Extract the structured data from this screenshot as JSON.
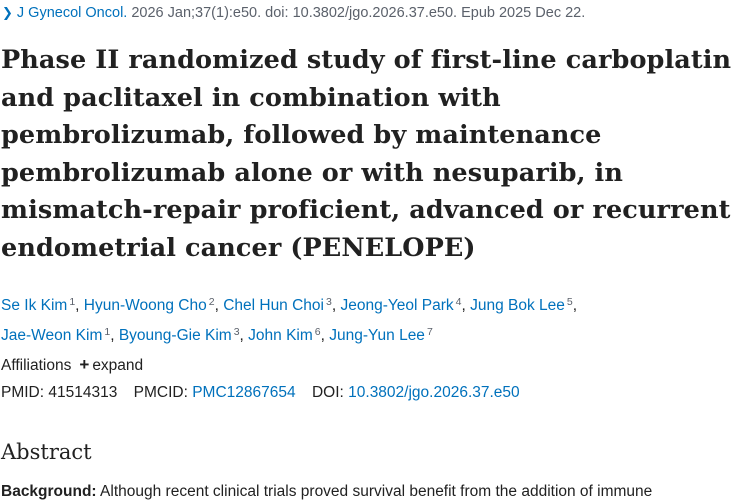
{
  "citation": {
    "journal": "J Gynecol Oncol.",
    "details": "2026 Jan;37(1):e50. doi: 10.3802/jgo.2026.37.e50. Epub 2025 Dec 22."
  },
  "title": "Phase II randomized study of first-line carboplatin and paclitaxel in combination with pembrolizumab, followed by maintenance pembrolizumab alone or with nesuparib, in mismatch-repair proficient, advanced or recurrent endometrial cancer (PENELOPE)",
  "authors": [
    {
      "name": "Se Ik Kim",
      "aff": "1"
    },
    {
      "name": "Hyun-Woong Cho",
      "aff": "2"
    },
    {
      "name": "Chel Hun Choi",
      "aff": "3"
    },
    {
      "name": "Jeong-Yeol Park",
      "aff": "4"
    },
    {
      "name": "Jung Bok Lee",
      "aff": "5"
    },
    {
      "name": "Jae-Weon Kim",
      "aff": "1"
    },
    {
      "name": "Byoung-Gie Kim",
      "aff": "3"
    },
    {
      "name": "John Kim",
      "aff": "6"
    },
    {
      "name": "Jung-Yun Lee",
      "aff": "7"
    }
  ],
  "affiliations": {
    "label": "Affiliations",
    "expand_label": "expand"
  },
  "ids": {
    "pmid_label": "PMID:",
    "pmid": "41514313",
    "pmcid_label": "PMCID:",
    "pmcid": "PMC12867654",
    "doi_label": "DOI:",
    "doi": "10.3802/jgo.2026.37.e50"
  },
  "abstract": {
    "heading": "Abstract",
    "background_label": "Background:",
    "background_text": "Although recent clinical trials proved survival benefit from the addition of immune"
  }
}
